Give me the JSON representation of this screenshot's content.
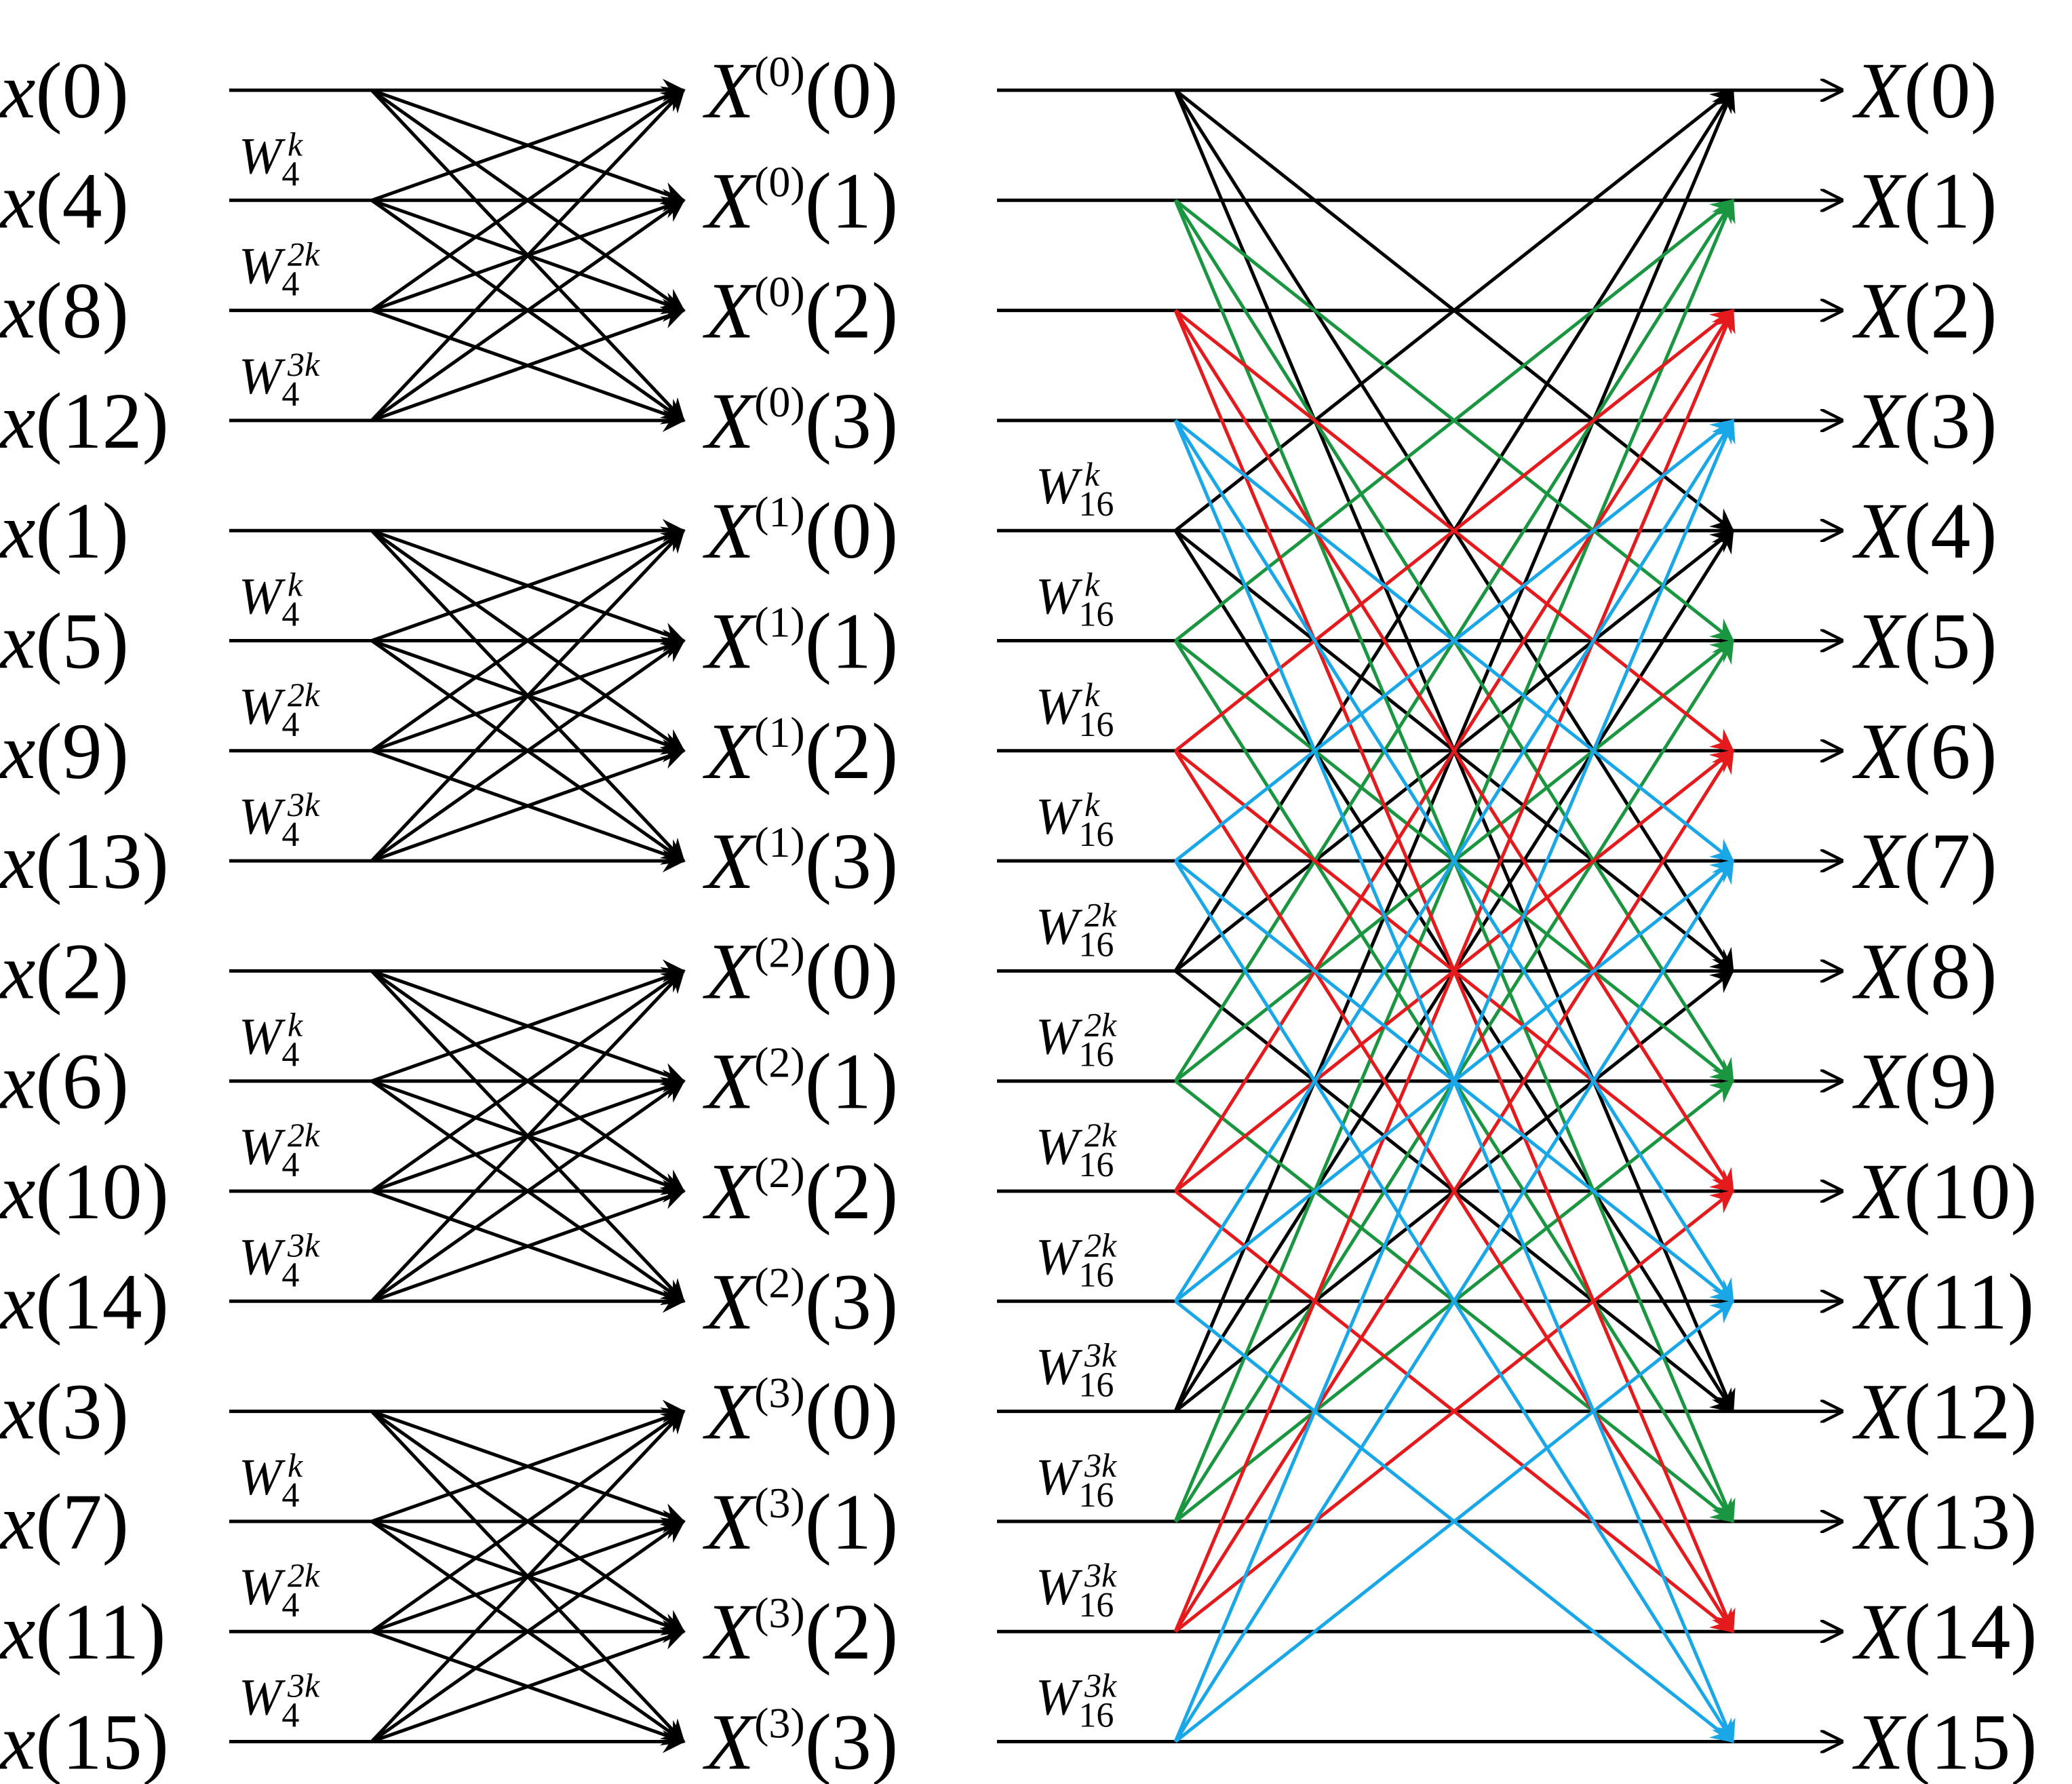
{
  "inputs": [
    "x(0)",
    "x(4)",
    "x(8)",
    "x(12)",
    "x(1)",
    "x(5)",
    "x(9)",
    "x(13)",
    "x(2)",
    "x(6)",
    "x(10)",
    "x(14)",
    "x(3)",
    "x(7)",
    "x(11)",
    "x(15)"
  ],
  "intermediate": [
    "X(0)(0)",
    "X(0)(1)",
    "X(0)(2)",
    "X(0)(3)",
    "X(1)(0)",
    "X(1)(1)",
    "X(1)(2)",
    "X(1)(3)",
    "X(2)(0)",
    "X(2)(1)",
    "X(2)(2)",
    "X(2)(3)",
    "X(3)(0)",
    "X(3)(1)",
    "X(3)(2)",
    "X(3)(3)"
  ],
  "outputs": [
    "X(0)",
    "X(1)",
    "X(2)",
    "X(3)",
    "X(4)",
    "X(5)",
    "X(6)",
    "X(7)",
    "X(8)",
    "X(9)",
    "X(10)",
    "X(11)",
    "X(12)",
    "X(13)",
    "X(14)",
    "X(15)"
  ],
  "stage1_twiddles": {
    "base": "W",
    "subscript": "4",
    "exponents": [
      "",
      "k",
      "2k",
      "3k",
      "",
      "k",
      "2k",
      "3k",
      "",
      "k",
      "2k",
      "3k",
      "",
      "k",
      "2k",
      "3k"
    ]
  },
  "stage2_twiddles": {
    "base": "W",
    "subscript": "16",
    "exponents": [
      "",
      "",
      "",
      "",
      "k",
      "k",
      "k",
      "k",
      "2k",
      "2k",
      "2k",
      "2k",
      "3k",
      "3k",
      "3k",
      "3k"
    ]
  },
  "group_colors": [
    "#000000",
    "#1a9641",
    "#e41a1c",
    "#1aa7e8"
  ]
}
